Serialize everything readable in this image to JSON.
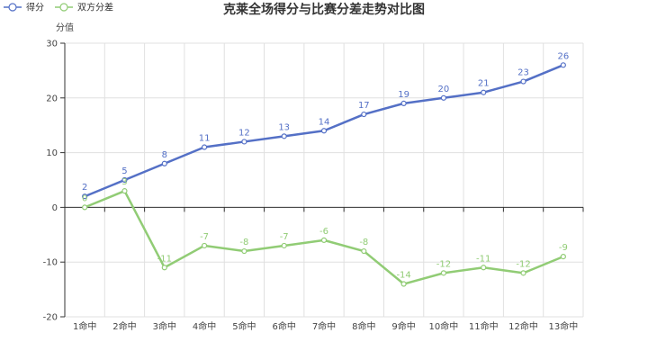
{
  "chart_data": {
    "type": "line",
    "title": "克莱全场得分与比赛分差走势对比图",
    "ylabel": "分值",
    "xlabel": "",
    "ylim": [
      -20,
      30
    ],
    "yticks": [
      -20,
      -10,
      0,
      10,
      20,
      30
    ],
    "categories": [
      "1命中",
      "2命中",
      "3命中",
      "4命中",
      "5命中",
      "6命中",
      "7命中",
      "8命中",
      "9命中",
      "10命中",
      "11命中",
      "12命中",
      "13命中"
    ],
    "series": [
      {
        "name": "得分",
        "color": "#5470c6",
        "values": [
          2,
          5,
          8,
          11,
          12,
          13,
          14,
          17,
          19,
          20,
          21,
          23,
          26
        ]
      },
      {
        "name": "双方分差",
        "color": "#91cc75",
        "values": [
          0,
          3,
          -11,
          -7,
          -8,
          -7,
          -6,
          -8,
          -14,
          -12,
          -11,
          -12,
          -9
        ]
      }
    ],
    "legend_position": "top-left",
    "grid": true
  }
}
